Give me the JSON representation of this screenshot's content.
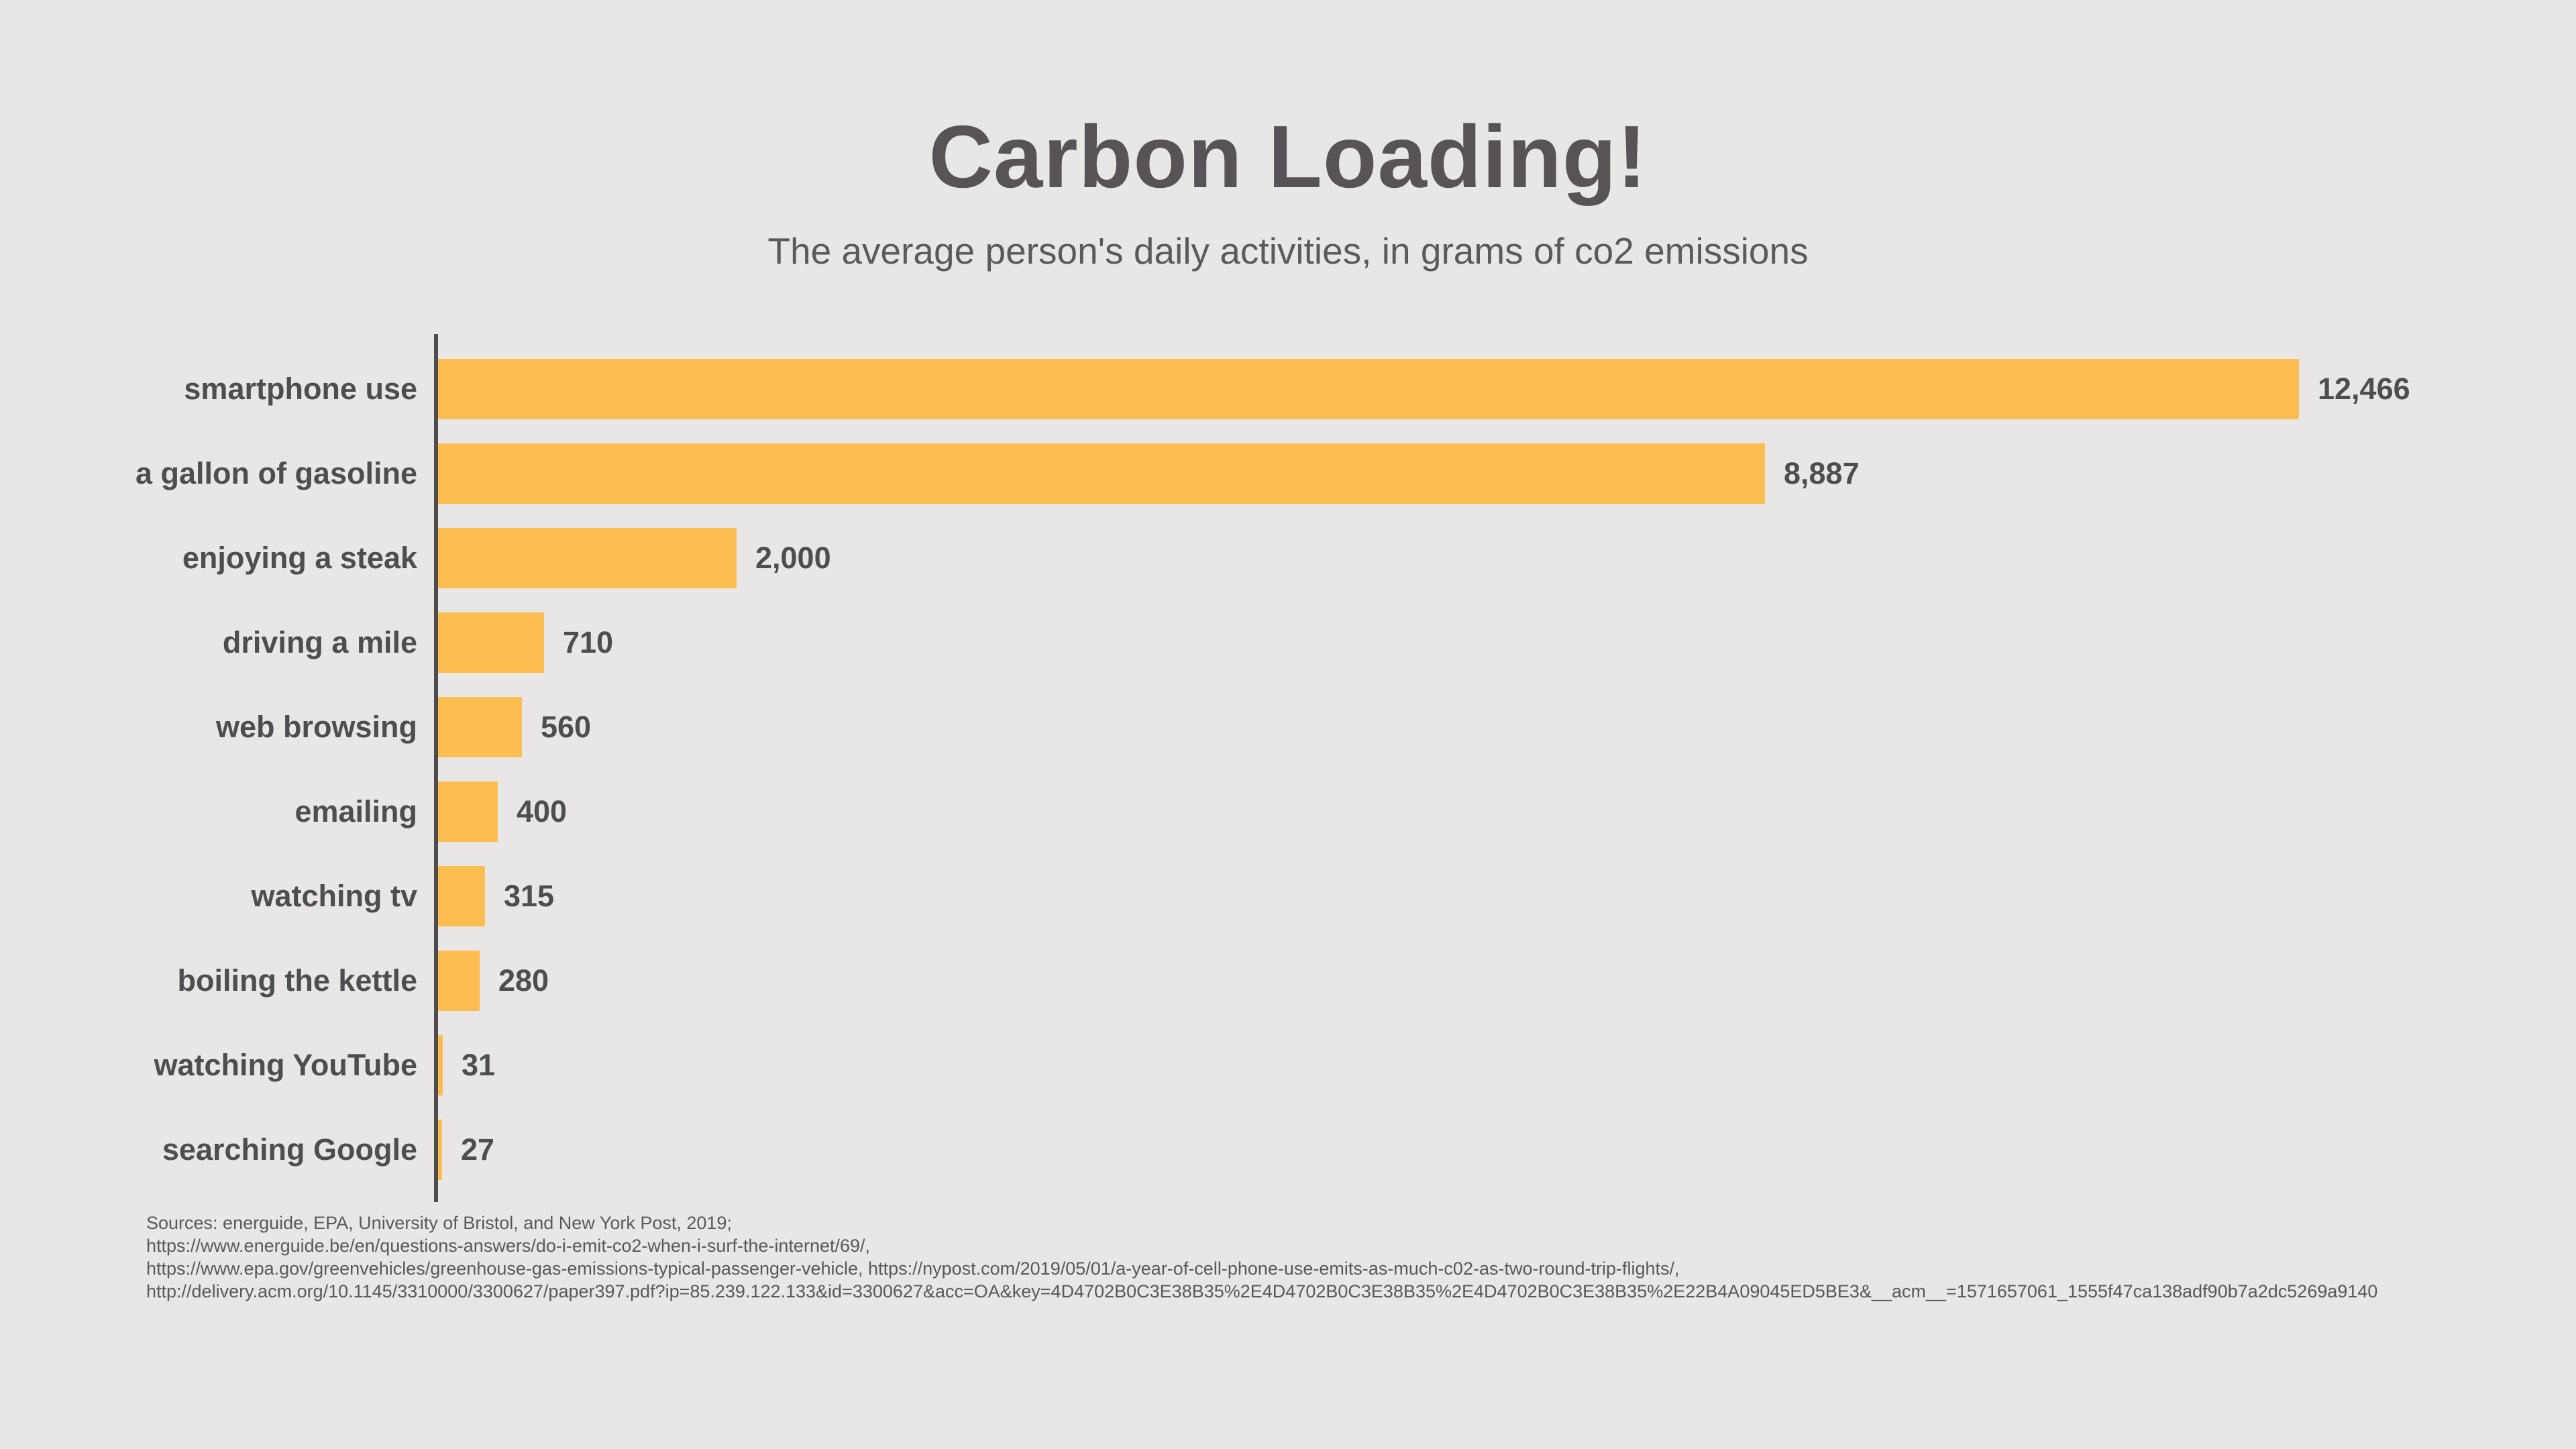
{
  "page": {
    "background": "#e8e7e6"
  },
  "header": {
    "title": "Carbon Loading!",
    "subtitle": "The average person's daily activities, in grams of co2 emissions"
  },
  "chart_data": {
    "type": "bar",
    "orientation": "horizontal",
    "title": "Carbon Loading!",
    "subtitle": "The average person's daily activities, in grams of co2 emissions",
    "categories": [
      "smartphone use",
      "a gallon of gasoline",
      "enjoying a steak",
      "driving a mile",
      "web browsing",
      "emailing",
      "watching tv",
      "boiling the kettle",
      "watching YouTube",
      "searching Google"
    ],
    "values": [
      12466,
      8887,
      2000,
      710,
      560,
      400,
      315,
      280,
      31,
      27
    ],
    "value_labels": [
      "12,466",
      "8,887",
      "2,000",
      "710",
      "560",
      "400",
      "315",
      "280",
      "31",
      "27"
    ],
    "xlim": [
      0,
      12466
    ],
    "grid": false,
    "legend": false,
    "bar_color": "#fcbd51",
    "axis_color": "#4d4d4d",
    "label_color": "#4d4e50"
  },
  "footer": {
    "lines": [
      "Sources: energuide, EPA, University of Bristol, and New York Post, 2019;",
      "https://www.energuide.be/en/questions-answers/do-i-emit-co2-when-i-surf-the-internet/69/,",
      "https://www.epa.gov/greenvehicles/greenhouse-gas-emissions-typical-passenger-vehicle, https://nypost.com/2019/05/01/a-year-of-cell-phone-use-emits-as-much-c02-as-two-round-trip-flights/,",
      "http://delivery.acm.org/10.1145/3310000/3300627/paper397.pdf?ip=85.239.122.133&id=3300627&acc=OA&key=4D4702B0C3E38B35%2E4D4702B0C3E38B35%2E4D4702B0C3E38B35%2E22B4A09045ED5BE3&__acm__=1571657061_1555f47ca138adf90b7a2dc5269a9140"
    ]
  }
}
